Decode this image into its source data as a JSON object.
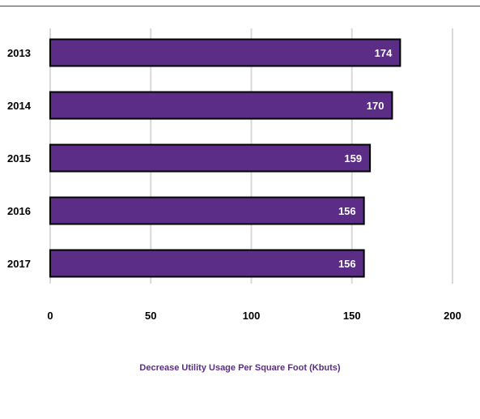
{
  "chart_data": {
    "type": "bar",
    "orientation": "horizontal",
    "categories": [
      "2013",
      "2014",
      "2015",
      "2016",
      "2017"
    ],
    "values": [
      174,
      170,
      159,
      156,
      156
    ],
    "data_labels": [
      "174",
      "170",
      "159",
      "156",
      "156"
    ],
    "xlim": [
      0,
      200
    ],
    "x_ticks": [
      "0",
      "50",
      "100",
      "150",
      "200"
    ],
    "title": "Decrease Utility Usage Per Square Foot (Kbuts)",
    "grid": "vertical",
    "bar_color": "#5b2d86",
    "bar_border_color": "#000000",
    "label_color": "#ffffff",
    "title_color": "#5b2d86"
  }
}
